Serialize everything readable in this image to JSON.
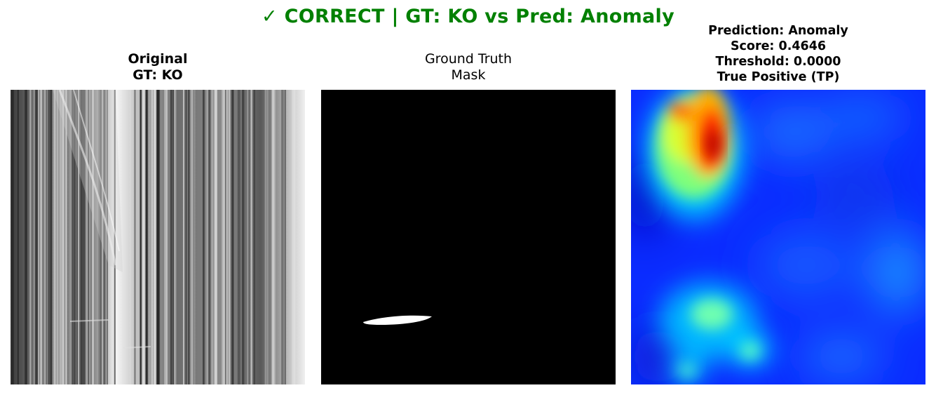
{
  "figure": {
    "title": "✓ CORRECT | GT: KO vs Pred: Anomaly",
    "title_color": "#008000"
  },
  "panels": {
    "original": {
      "line1": "Original",
      "line2": "GT: KO",
      "image": "grayscale-striated-texture"
    },
    "ground_truth": {
      "line1": "Ground Truth",
      "line2": "Mask",
      "image": "binary-mask-elongated-defect"
    },
    "prediction": {
      "line1": "Prediction: Anomaly",
      "line2": "Score: 0.4646",
      "line3": "Threshold: 0.0000",
      "line4": "True Positive (TP)",
      "image": "jet-colormap-anomaly-heatmap"
    }
  }
}
